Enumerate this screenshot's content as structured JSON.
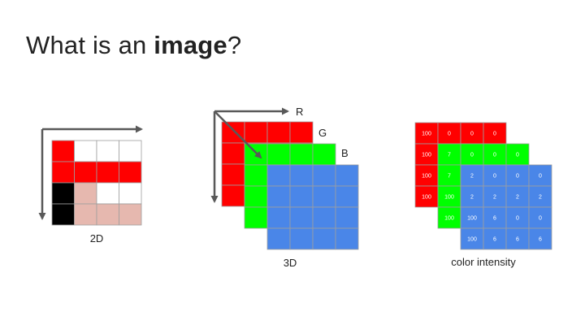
{
  "title": {
    "prefix": "What is an ",
    "bold": "image",
    "suffix": "?"
  },
  "colors": {
    "red": "#ff0000",
    "green": "#00ff00",
    "blue": "#4a86e8",
    "pink": "#e6b8af",
    "black": "#000000",
    "white": "#ffffff",
    "grid_line": "#9e9e9e",
    "arrow": "#595959"
  },
  "diagram_2d": {
    "label": "2D",
    "grid": [
      [
        "red",
        "white",
        "white",
        "white"
      ],
      [
        "red",
        "red",
        "red",
        "red"
      ],
      [
        "black",
        "pink",
        "white",
        "white"
      ],
      [
        "black",
        "pink",
        "pink",
        "pink"
      ]
    ]
  },
  "diagram_3d": {
    "label": "3D",
    "layer_labels": [
      "R",
      "G",
      "B"
    ],
    "layers": [
      {
        "color": "red",
        "rows": 4,
        "cols": 4
      },
      {
        "color": "green",
        "rows": 4,
        "cols": 4
      },
      {
        "color": "blue",
        "rows": 4,
        "cols": 4
      }
    ]
  },
  "diagram_intensity": {
    "label": "color intensity",
    "layers": [
      {
        "color": "red",
        "values": [
          [
            "100",
            "0",
            "0",
            "0"
          ],
          [
            "100",
            "",
            "",
            ""
          ],
          [
            "100",
            "",
            "",
            ""
          ],
          [
            "100",
            "",
            "",
            ""
          ]
        ]
      },
      {
        "color": "green",
        "values": [
          [
            "7",
            "0",
            "0",
            "0"
          ],
          [
            "7",
            "",
            "",
            ""
          ],
          [
            "100",
            "",
            "",
            ""
          ],
          [
            "100",
            "",
            "",
            ""
          ]
        ]
      },
      {
        "color": "blue",
        "values": [
          [
            "2",
            "0",
            "0",
            "0"
          ],
          [
            "2",
            "2",
            "2",
            "2"
          ],
          [
            "100",
            "6",
            "0",
            "0"
          ],
          [
            "100",
            "6",
            "6",
            "6"
          ]
        ]
      }
    ]
  }
}
